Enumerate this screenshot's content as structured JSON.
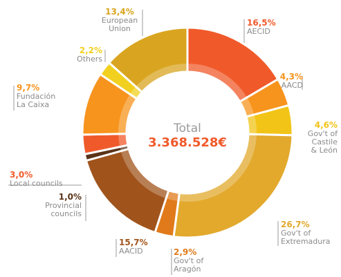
{
  "chart_data": {
    "type": "donut",
    "center_label": "Total",
    "total": "3.368.528€",
    "categories": [
      "AECID",
      "AACD",
      "Gov't of\nCastile\n& León",
      "Gov't of\nExtremadura",
      "Gov't of\nAragón",
      "AACID",
      "Provincial\ncouncils",
      "Local councils",
      "Fundación\nLa Caixa",
      "Others",
      "European\nUnion"
    ],
    "values": [
      16.5,
      4.3,
      4.6,
      26.7,
      2.9,
      15.7,
      1.0,
      3.0,
      9.7,
      2.2,
      13.4
    ],
    "value_labels": [
      "16,5%",
      "4,3%",
      "4,6%",
      "26,7%",
      "2,9%",
      "15,7%",
      "1,0%",
      "3,0%",
      "9,7%",
      "2,2%",
      "13,4%"
    ],
    "colors": [
      "#f05a2a",
      "#f7941d",
      "#f2c418",
      "#e2a92c",
      "#e07a1a",
      "#a0541c",
      "#5a3318",
      "#f05a2a",
      "#f7941d",
      "#f2d020",
      "#d9a520"
    ]
  }
}
